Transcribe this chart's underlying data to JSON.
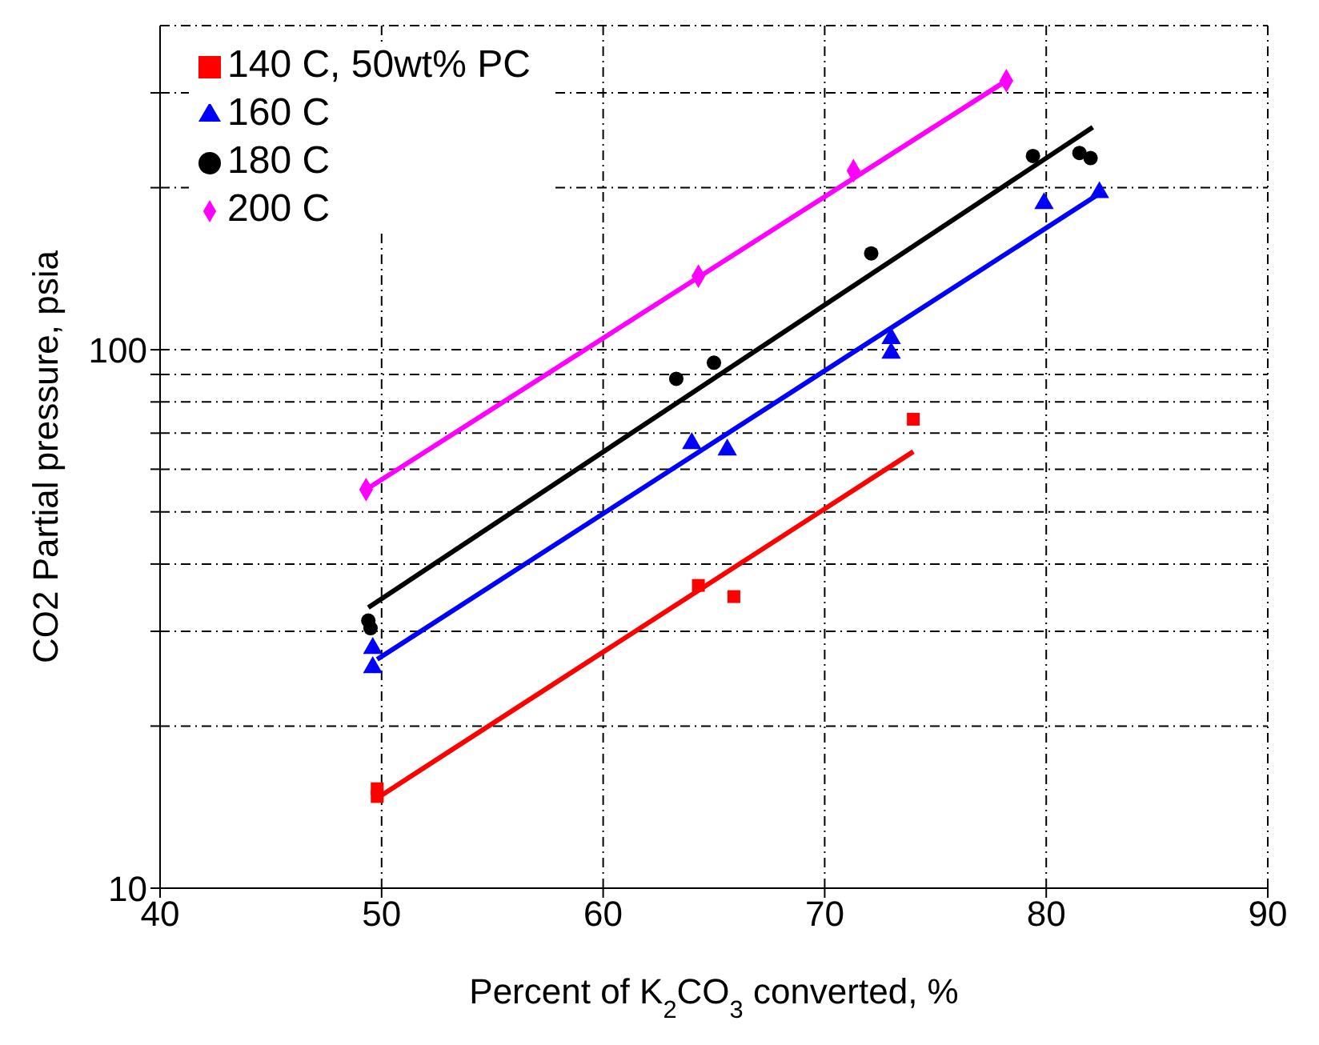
{
  "chart_data": {
    "type": "scatter",
    "xlabel": "Percent of K$_{2}$CO$_{3}$ converted, %",
    "ylabel": "CO2 Partial pressure, psia",
    "log": "y",
    "xlim": [
      40,
      90
    ],
    "xticks": [
      40,
      50,
      60,
      70,
      80,
      90
    ],
    "ylim": [
      10,
      400
    ],
    "yticks": [
      10,
      {
        "value": 20,
        "label": null
      },
      {
        "value": 30,
        "label": null
      },
      {
        "value": 40,
        "label": null
      },
      {
        "value": 50,
        "label": null
      },
      {
        "value": 60,
        "label": null
      },
      {
        "value": 70,
        "label": null
      },
      {
        "value": 80,
        "label": null
      },
      {
        "value": 90,
        "label": null
      },
      100,
      {
        "value": 200,
        "label": null
      },
      {
        "value": 300,
        "label": null
      }
    ],
    "grid": true,
    "legend": "top left",
    "series": [
      {
        "name": "140 C, 50wt% PC",
        "marker": "square",
        "color": "#ff0000",
        "x": [
          49.8,
          49.8,
          64.3,
          65.9,
          74.0
        ],
        "values": [
          14.8,
          15.3,
          36.5,
          34.8,
          74.3
        ]
      },
      {
        "name": "160 C",
        "marker": "triangle",
        "color": "#0000ff",
        "x": [
          49.6,
          49.6,
          64.0,
          65.6,
          73.0,
          73.0,
          79.9,
          82.4
        ],
        "values": [
          27.9,
          25.7,
          67,
          65.2,
          105,
          98.6,
          187,
          196
        ]
      },
      {
        "name": "180 C",
        "marker": "circle",
        "color": "#000000",
        "x": [
          49.4,
          49.5,
          63.3,
          65.0,
          72.1,
          79.4,
          81.5,
          82.0
        ],
        "values": [
          31.4,
          30.4,
          88.3,
          94.6,
          151,
          229,
          232,
          227
        ]
      },
      {
        "name": "200 C",
        "marker": "diamond",
        "color": "#ff00ff",
        "x": [
          49.3,
          64.3,
          71.3,
          78.2
        ],
        "values": [
          55,
          137,
          215,
          316
        ]
      },
      {
        "type": "line",
        "marker": "none",
        "color": "#ff0000",
        "x": [
          49.8,
          74.0
        ],
        "values": [
          14.7,
          64.7
        ]
      },
      {
        "type": "line",
        "marker": "none",
        "color": "#0000ff",
        "x": [
          49.8,
          82.4
        ],
        "values": [
          26.6,
          195
        ]
      },
      {
        "type": "line",
        "marker": "none",
        "color": "#000000",
        "x": [
          49.4,
          82.1
        ],
        "values": [
          33.2,
          259
        ]
      },
      {
        "type": "line",
        "marker": "none",
        "color": "#ff00ff",
        "x": [
          49.3,
          78.2
        ],
        "values": [
          55,
          316
        ]
      }
    ]
  }
}
